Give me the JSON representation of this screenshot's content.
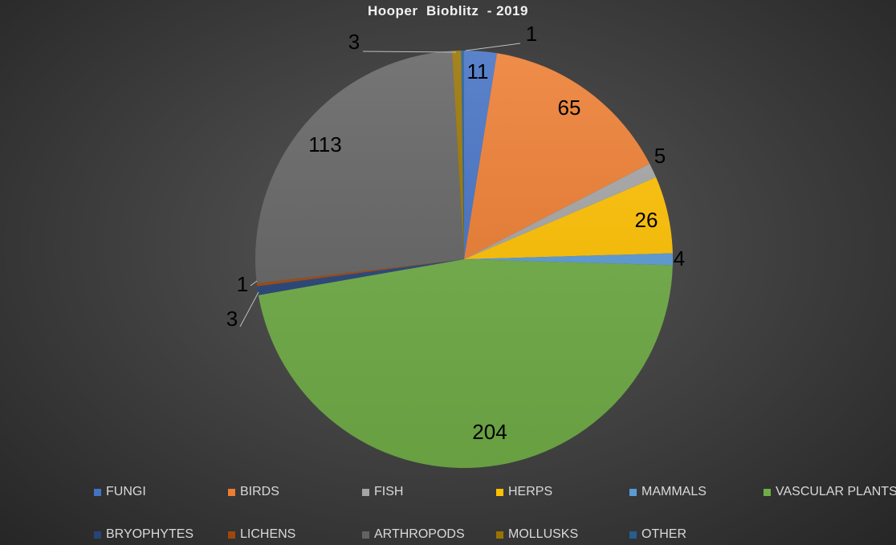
{
  "chart_data": {
    "type": "pie",
    "title": "Hooper  Bioblitz  - 2019",
    "categories": [
      "FUNGI",
      "BIRDS",
      "FISH",
      "HERPS",
      "MAMMALS",
      "VASCULAR PLANTS",
      "BRYOPHYTES",
      "LICHENS",
      "ARTHROPODS",
      "MOLLUSKS",
      "OTHER"
    ],
    "values": [
      11,
      65,
      5,
      26,
      4,
      204,
      3,
      1,
      113,
      3,
      1
    ],
    "colors": [
      "#4472C4",
      "#ED7D31",
      "#A5A5A5",
      "#FFC000",
      "#5B9BD5",
      "#70AD47",
      "#264478",
      "#9E480E",
      "#636363",
      "#997300",
      "#255E91"
    ],
    "legend_position": "bottom"
  }
}
